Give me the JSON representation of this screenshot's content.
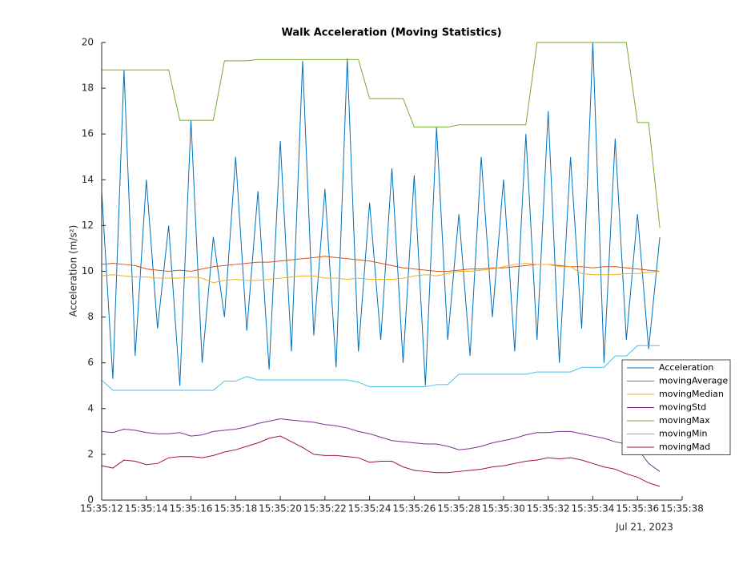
{
  "chart_data": {
    "type": "line",
    "title": "Walk Acceleration (Moving Statistics)",
    "y_label": "Acceleration (m/s²)",
    "date_label": "Jul 21, 2023",
    "x": [
      12,
      12.5,
      13,
      13.5,
      14,
      14.5,
      15,
      15.5,
      16,
      16.5,
      17,
      17.5,
      18,
      18.5,
      19,
      19.5,
      20,
      20.5,
      21,
      21.5,
      22,
      22.5,
      23,
      23.5,
      24,
      24.5,
      25,
      25.5,
      26,
      26.5,
      27,
      27.5,
      28,
      28.5,
      29,
      29.5,
      30,
      30.5,
      31,
      31.5,
      32,
      32.5,
      33,
      33.5,
      34,
      34.5,
      35,
      35.5,
      36,
      36.5,
      37
    ],
    "xlim": [
      12,
      38
    ],
    "xticks": [
      {
        "value": 12,
        "label": "15:35:12"
      },
      {
        "value": 14,
        "label": "15:35:14"
      },
      {
        "value": 16,
        "label": "15:35:16"
      },
      {
        "value": 18,
        "label": "15:35:18"
      },
      {
        "value": 20,
        "label": "15:35:20"
      },
      {
        "value": 22,
        "label": "15:35:22"
      },
      {
        "value": 24,
        "label": "15:35:24"
      },
      {
        "value": 26,
        "label": "15:35:26"
      },
      {
        "value": 28,
        "label": "15:35:28"
      },
      {
        "value": 30,
        "label": "15:35:30"
      },
      {
        "value": 32,
        "label": "15:35:32"
      },
      {
        "value": 34,
        "label": "15:35:34"
      },
      {
        "value": 36,
        "label": "15:35:36"
      },
      {
        "value": 38,
        "label": "15:35:38"
      }
    ],
    "ylim": [
      0,
      20
    ],
    "yticks": [
      0,
      2,
      4,
      6,
      8,
      10,
      12,
      14,
      16,
      18,
      20
    ],
    "legend_position": "right",
    "series": [
      {
        "name": "Acceleration",
        "color": "#0072BD",
        "values": [
          13.5,
          5.3,
          18.8,
          6.3,
          14,
          7.5,
          12,
          5,
          16.6,
          6,
          11.5,
          8,
          15,
          7.4,
          13.5,
          5.7,
          15.7,
          6.5,
          19.2,
          7.2,
          13.6,
          5.8,
          19.3,
          6.5,
          13,
          7,
          14.5,
          6,
          14.2,
          5,
          16.3,
          7,
          12.5,
          6.3,
          15,
          8,
          14,
          6.5,
          16,
          7,
          17,
          6,
          15,
          7.5,
          20,
          6,
          15.8,
          7,
          12.5,
          6.6,
          11.5
        ]
      },
      {
        "name": "movingAverage",
        "color": "#D95319",
        "values": [
          10.3,
          10.35,
          10.3,
          10.25,
          10.1,
          10.05,
          10.0,
          10.05,
          10.0,
          10.1,
          10.2,
          10.25,
          10.3,
          10.35,
          10.4,
          10.4,
          10.45,
          10.5,
          10.55,
          10.6,
          10.65,
          10.6,
          10.55,
          10.5,
          10.45,
          10.35,
          10.25,
          10.15,
          10.1,
          10.05,
          10.0,
          10.0,
          10.05,
          10.1,
          10.1,
          10.15,
          10.15,
          10.2,
          10.25,
          10.3,
          10.3,
          10.25,
          10.2,
          10.2,
          10.15,
          10.2,
          10.2,
          10.15,
          10.1,
          10.05,
          10.0
        ]
      },
      {
        "name": "movingMedian",
        "color": "#EDB120",
        "values": [
          9.8,
          9.85,
          9.8,
          9.75,
          9.75,
          9.7,
          9.7,
          9.7,
          9.75,
          9.7,
          9.5,
          9.6,
          9.65,
          9.6,
          9.6,
          9.65,
          9.7,
          9.75,
          9.8,
          9.8,
          9.7,
          9.7,
          9.65,
          9.7,
          9.65,
          9.65,
          9.65,
          9.7,
          9.8,
          9.85,
          9.8,
          9.9,
          10.0,
          10.0,
          10.05,
          10.1,
          10.2,
          10.3,
          10.35,
          10.3,
          10.3,
          10.2,
          10.2,
          9.9,
          9.85,
          9.85,
          9.85,
          9.9,
          9.9,
          9.95,
          10.0
        ]
      },
      {
        "name": "movingStd",
        "color": "#7E2F8E",
        "values": [
          3.0,
          2.95,
          3.1,
          3.05,
          2.95,
          2.9,
          2.9,
          2.95,
          2.8,
          2.85,
          3.0,
          3.05,
          3.1,
          3.2,
          3.35,
          3.45,
          3.55,
          3.5,
          3.45,
          3.4,
          3.3,
          3.25,
          3.15,
          3.0,
          2.9,
          2.75,
          2.6,
          2.55,
          2.5,
          2.45,
          2.45,
          2.35,
          2.2,
          2.25,
          2.35,
          2.5,
          2.6,
          2.7,
          2.85,
          2.95,
          2.95,
          3.0,
          3.0,
          2.9,
          2.8,
          2.7,
          2.55,
          2.45,
          2.25,
          1.6,
          1.25
        ]
      },
      {
        "name": "movingMax",
        "color": "#77AC30",
        "values": [
          18.8,
          18.8,
          18.8,
          18.8,
          18.8,
          18.8,
          18.8,
          16.6,
          16.6,
          16.6,
          16.6,
          19.2,
          19.2,
          19.2,
          19.25,
          19.25,
          19.25,
          19.25,
          19.25,
          19.25,
          19.25,
          19.25,
          19.25,
          19.25,
          17.55,
          17.55,
          17.55,
          17.55,
          16.3,
          16.3,
          16.3,
          16.3,
          16.4,
          16.4,
          16.4,
          16.4,
          16.4,
          16.4,
          16.4,
          20,
          20,
          20,
          20,
          20,
          20,
          20,
          20,
          20,
          16.5,
          16.5,
          11.9
        ]
      },
      {
        "name": "movingMin",
        "color": "#4DBEEE",
        "values": [
          5.25,
          4.8,
          4.8,
          4.8,
          4.8,
          4.8,
          4.8,
          4.8,
          4.8,
          4.8,
          4.8,
          5.2,
          5.2,
          5.4,
          5.25,
          5.25,
          5.25,
          5.25,
          5.25,
          5.25,
          5.25,
          5.25,
          5.25,
          5.15,
          4.95,
          4.95,
          4.95,
          4.95,
          4.95,
          4.95,
          5.05,
          5.05,
          5.5,
          5.5,
          5.5,
          5.5,
          5.5,
          5.5,
          5.5,
          5.6,
          5.6,
          5.6,
          5.6,
          5.8,
          5.8,
          5.8,
          6.3,
          6.3,
          6.75,
          6.75,
          6.75
        ]
      },
      {
        "name": "movingMad",
        "color": "#A2142F",
        "values": [
          1.5,
          1.4,
          1.75,
          1.7,
          1.55,
          1.6,
          1.85,
          1.9,
          1.9,
          1.85,
          1.95,
          2.1,
          2.2,
          2.35,
          2.5,
          2.7,
          2.8,
          2.55,
          2.3,
          2.0,
          1.95,
          1.95,
          1.9,
          1.85,
          1.65,
          1.7,
          1.7,
          1.45,
          1.3,
          1.25,
          1.2,
          1.2,
          1.25,
          1.3,
          1.35,
          1.45,
          1.5,
          1.6,
          1.7,
          1.75,
          1.85,
          1.8,
          1.85,
          1.75,
          1.6,
          1.45,
          1.35,
          1.15,
          1.0,
          0.75,
          0.6
        ]
      }
    ]
  }
}
